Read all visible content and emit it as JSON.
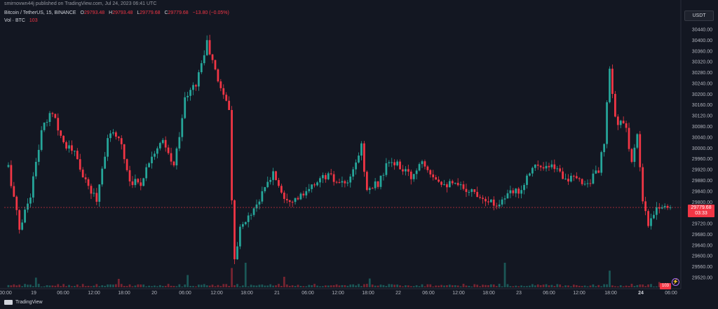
{
  "header": {
    "published": "smirnovwn44j published on TradingView.com, Jul 24, 2023 06:41 UTC",
    "symbol": "Bitcoin / TetherUS, 15, BINANCE",
    "ohlc": {
      "o_label": "O",
      "o": "29793.48",
      "h_label": "H",
      "h": "29793.48",
      "l_label": "L",
      "l": "29779.68",
      "c_label": "C",
      "c": "29779.68",
      "change": "−13.80 (−0.05%)"
    },
    "volume_label": "Vol · BTC",
    "volume_value": "103"
  },
  "currency_button": "USDT",
  "footer": {
    "brand": "TradingView"
  },
  "last_price": {
    "value": "29779.68",
    "countdown": "03:33"
  },
  "volume_tag": "103",
  "colors": {
    "up": "#26a69a",
    "down": "#f23645",
    "background": "#131722",
    "axis_text": "#b2b5be",
    "grid": "#1e222d"
  },
  "chart_data": {
    "type": "candlestick",
    "title": "Bitcoin / TetherUS, 15, BINANCE",
    "y_axis": {
      "ticks": [
        29520,
        29560,
        29600,
        29640,
        29680,
        29720,
        29760,
        29800,
        29840,
        29880,
        29920,
        29960,
        30000,
        30040,
        30080,
        30120,
        30160,
        30200,
        30240,
        30280,
        30320,
        30360,
        30400,
        30440
      ],
      "tick_labels": [
        "29520.00",
        "29560.00",
        "29600.00",
        "29640.00",
        "29680.00",
        "29720.00",
        "29760.00",
        "29800.00",
        "29840.00",
        "29880.00",
        "29920.00",
        "29960.00",
        "30000.00",
        "30040.00",
        "30080.00",
        "30120.00",
        "30160.00",
        "30200.00",
        "30240.00",
        "30280.00",
        "30320.00",
        "30360.00",
        "30400.00",
        "30440.00"
      ],
      "range": [
        29500,
        30470
      ]
    },
    "x_axis": {
      "labels": [
        "00:00",
        "19",
        "06:00",
        "12:00",
        "18:00",
        "20",
        "06:00",
        "12:00",
        "18:00",
        "21",
        "06:00",
        "12:00",
        "18:00",
        "22",
        "06:00",
        "12:00",
        "18:00",
        "23",
        "06:00",
        "12:00",
        "18:00",
        "24",
        "06:00"
      ],
      "bold": [
        false,
        false,
        false,
        false,
        false,
        false,
        false,
        false,
        false,
        false,
        false,
        false,
        false,
        false,
        false,
        false,
        false,
        false,
        false,
        false,
        false,
        true,
        false
      ]
    },
    "price_path": [
      [
        0,
        29930
      ],
      [
        4,
        29700
      ],
      [
        8,
        29830
      ],
      [
        12,
        30060
      ],
      [
        16,
        30140
      ],
      [
        20,
        30020
      ],
      [
        24,
        29980
      ],
      [
        28,
        29870
      ],
      [
        32,
        29810
      ],
      [
        36,
        30040
      ],
      [
        40,
        30050
      ],
      [
        44,
        29880
      ],
      [
        48,
        29870
      ],
      [
        52,
        29980
      ],
      [
        56,
        30020
      ],
      [
        60,
        29930
      ],
      [
        64,
        30180
      ],
      [
        68,
        30240
      ],
      [
        72,
        30390
      ],
      [
        76,
        30250
      ],
      [
        80,
        30150
      ],
      [
        81,
        29800
      ],
      [
        82,
        29600
      ],
      [
        84,
        29700
      ],
      [
        88,
        29760
      ],
      [
        92,
        29830
      ],
      [
        96,
        29910
      ],
      [
        100,
        29820
      ],
      [
        104,
        29810
      ],
      [
        108,
        29830
      ],
      [
        112,
        29880
      ],
      [
        116,
        29900
      ],
      [
        120,
        29860
      ],
      [
        124,
        29880
      ],
      [
        128,
        30010
      ],
      [
        130,
        29840
      ],
      [
        134,
        29870
      ],
      [
        138,
        29950
      ],
      [
        142,
        29930
      ],
      [
        146,
        29890
      ],
      [
        150,
        29960
      ],
      [
        154,
        29900
      ],
      [
        158,
        29870
      ],
      [
        162,
        29860
      ],
      [
        166,
        29850
      ],
      [
        170,
        29830
      ],
      [
        174,
        29810
      ],
      [
        176,
        29790
      ],
      [
        178,
        29800
      ],
      [
        182,
        29830
      ],
      [
        186,
        29850
      ],
      [
        190,
        29940
      ],
      [
        194,
        29920
      ],
      [
        198,
        29930
      ],
      [
        202,
        29890
      ],
      [
        206,
        29880
      ],
      [
        210,
        29870
      ],
      [
        214,
        29920
      ],
      [
        216,
        30020
      ],
      [
        218,
        30290
      ],
      [
        220,
        30110
      ],
      [
        224,
        30070
      ],
      [
        226,
        29950
      ],
      [
        228,
        30040
      ],
      [
        230,
        29800
      ],
      [
        232,
        29710
      ],
      [
        236,
        29790
      ],
      [
        240,
        29775
      ]
    ],
    "volume_spikes": [
      [
        10,
        55
      ],
      [
        40,
        48
      ],
      [
        65,
        70
      ],
      [
        81,
        110
      ],
      [
        86,
        140
      ],
      [
        100,
        60
      ],
      [
        131,
        50
      ],
      [
        180,
        140
      ],
      [
        218,
        95
      ],
      [
        236,
        30
      ]
    ]
  }
}
